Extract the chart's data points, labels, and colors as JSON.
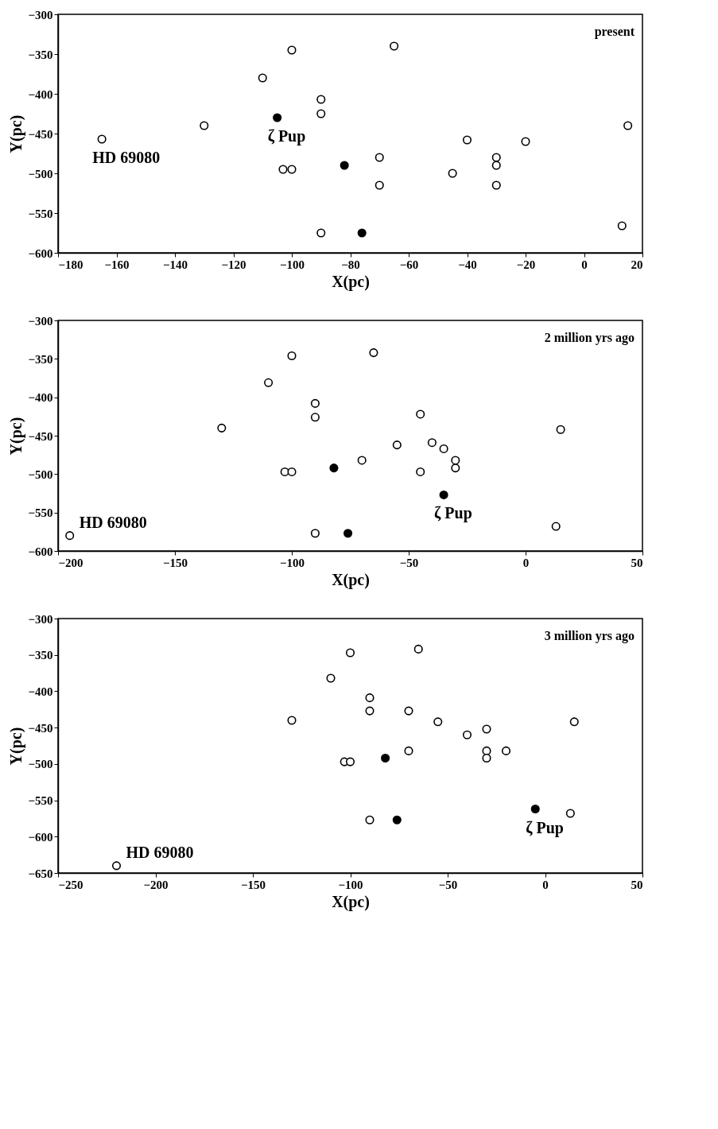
{
  "chart_data": [
    {
      "type": "scatter",
      "xlabel": "X(pc)",
      "ylabel": "Y(pc)",
      "xlim": [
        -180,
        20
      ],
      "ylim": [
        -600,
        -300
      ],
      "xticks": [
        -180,
        -160,
        -140,
        -120,
        -100,
        -80,
        -60,
        -40,
        -20,
        0,
        20
      ],
      "yticks": [
        -600,
        -550,
        -500,
        -450,
        -400,
        -350,
        -300
      ],
      "grid": false,
      "marker": "circle",
      "series": [
        {
          "color": "#ffffff",
          "x": [
            -165,
            -130,
            -110,
            -100,
            -90,
            -90,
            -103,
            -100,
            -90,
            -65,
            -70,
            -70,
            -45,
            -40,
            -30,
            -30,
            -30,
            -20,
            15,
            13
          ],
          "values": [
            -457,
            -440,
            -380,
            -345,
            -407,
            -425,
            -495,
            -495,
            -575,
            -340,
            -480,
            -515,
            -500,
            -458,
            -480,
            -490,
            -515,
            -460,
            -440,
            -566
          ]
        },
        {
          "color": "#000000",
          "x": [
            -105,
            -82,
            -76
          ],
          "values": [
            -430,
            -490,
            -575
          ]
        }
      ],
      "annotations": [
        "present",
        {
          "text": "HD 69080",
          "x": -165,
          "y": -457
        },
        {
          "text": "ζ Pup",
          "x": -105,
          "y": -430
        }
      ]
    },
    {
      "type": "scatter",
      "xlabel": "X(pc)",
      "ylabel": "Y(pc)",
      "xlim": [
        -200,
        50
      ],
      "ylim": [
        -600,
        -300
      ],
      "xticks": [
        -200,
        -150,
        -100,
        -50,
        0,
        50
      ],
      "yticks": [
        -600,
        -550,
        -500,
        -450,
        -400,
        -350,
        -300
      ],
      "grid": false,
      "marker": "circle",
      "series": [
        {
          "color": "#ffffff",
          "x": [
            -195,
            -130,
            -110,
            -100,
            -90,
            -90,
            -103,
            -100,
            -90,
            -65,
            -70,
            -55,
            -45,
            -45,
            -40,
            -35,
            -30,
            -30,
            15,
            13
          ],
          "values": [
            -580,
            -440,
            -381,
            -346,
            -408,
            -426,
            -497,
            -497,
            -577,
            -342,
            -482,
            -462,
            -422,
            -497,
            -459,
            -467,
            -482,
            -492,
            -442,
            -568
          ]
        },
        {
          "color": "#000000",
          "x": [
            -82,
            -76,
            -35
          ],
          "values": [
            -492,
            -577,
            -527
          ]
        }
      ],
      "annotations": [
        "2 million yrs ago",
        {
          "text": "HD 69080",
          "x": -195,
          "y": -580
        },
        {
          "text": "ζ Pup",
          "x": -35,
          "y": -527
        }
      ]
    },
    {
      "type": "scatter",
      "xlabel": "X(pc)",
      "ylabel": "Y(pc)",
      "xlim": [
        -250,
        50
      ],
      "ylim": [
        -650,
        -300
      ],
      "xticks": [
        -250,
        -200,
        -150,
        -100,
        -50,
        0,
        50
      ],
      "yticks": [
        -650,
        -600,
        -550,
        -500,
        -450,
        -400,
        -350,
        -300
      ],
      "grid": false,
      "marker": "circle",
      "series": [
        {
          "color": "#ffffff",
          "x": [
            -220,
            -130,
            -110,
            -100,
            -90,
            -90,
            -103,
            -100,
            -90,
            -65,
            -70,
            -70,
            -55,
            -40,
            -30,
            -30,
            -30,
            -20,
            15,
            13
          ],
          "values": [
            -640,
            -440,
            -382,
            -347,
            -409,
            -427,
            -497,
            -497,
            -577,
            -342,
            -427,
            -482,
            -442,
            -460,
            -452,
            -482,
            -492,
            -482,
            -442,
            -568
          ]
        },
        {
          "color": "#000000",
          "x": [
            -82,
            -76,
            -5
          ],
          "values": [
            -492,
            -577,
            -562
          ]
        }
      ],
      "annotations": [
        "3 million yrs ago",
        {
          "text": "HD 69080",
          "x": -220,
          "y": -640
        },
        {
          "text": "ζ Pup",
          "x": -5,
          "y": -562
        }
      ]
    }
  ]
}
